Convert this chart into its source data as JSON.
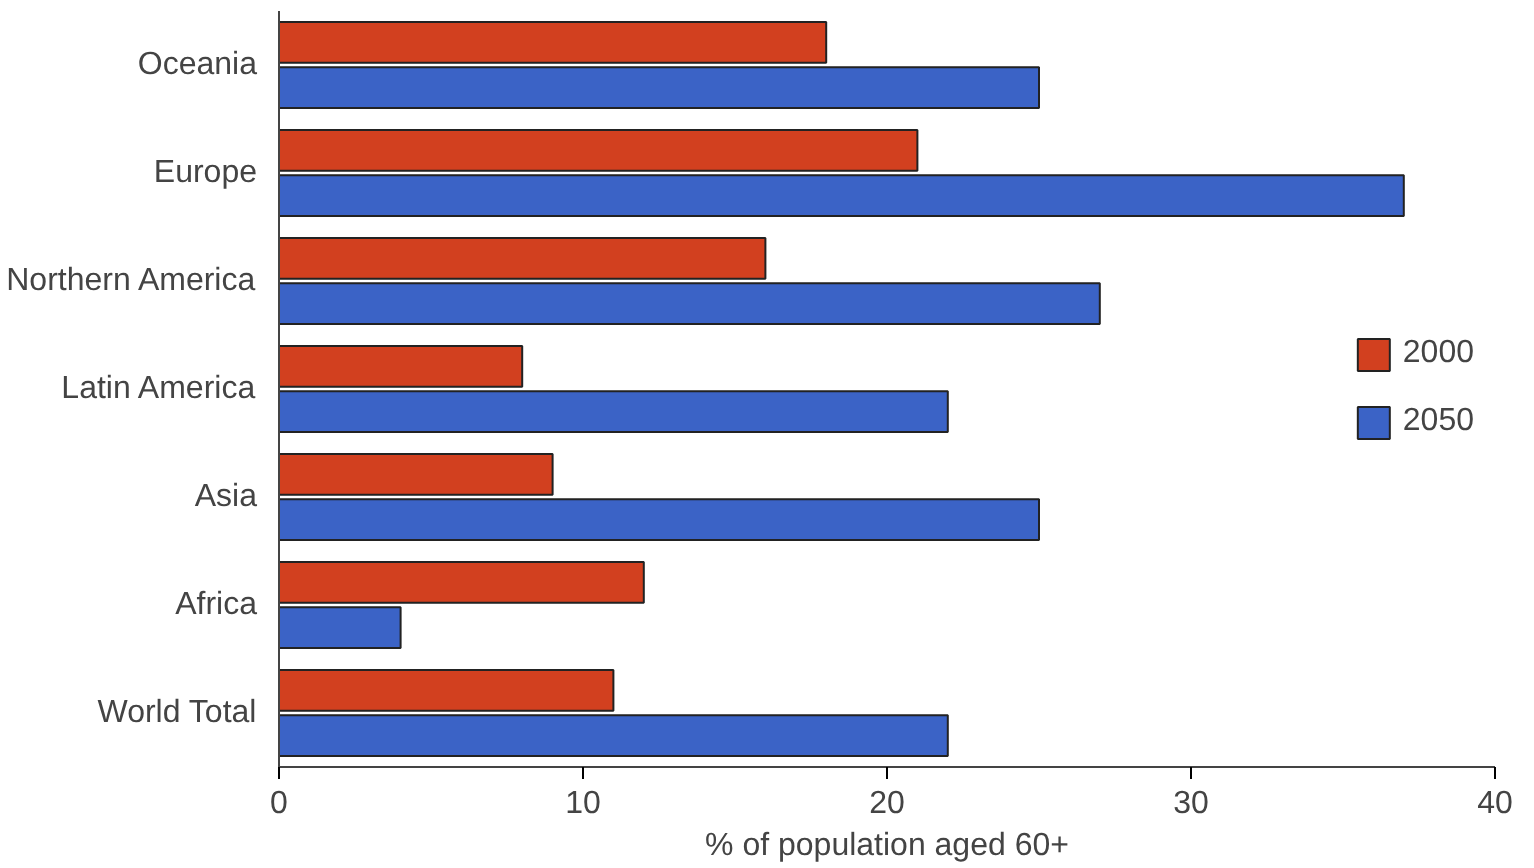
{
  "chart_data": {
    "type": "bar",
    "orientation": "horizontal",
    "xlabel": "% of population aged 60+",
    "categories": [
      "Oceania",
      "Europe",
      "Northern America",
      "Latin America",
      "Asia",
      "Africa",
      "World Total"
    ],
    "series": [
      {
        "name": "2000",
        "color": "#d2401f",
        "values": [
          18,
          21,
          16,
          8,
          9,
          12,
          11
        ]
      },
      {
        "name": "2050",
        "color": "#3b63c6",
        "values": [
          25,
          37,
          27,
          22,
          25,
          4,
          22
        ]
      }
    ],
    "xlim": [
      0,
      40
    ],
    "xticks": [
      0,
      10,
      20,
      30,
      40
    ],
    "grid": false,
    "legend": "right"
  }
}
